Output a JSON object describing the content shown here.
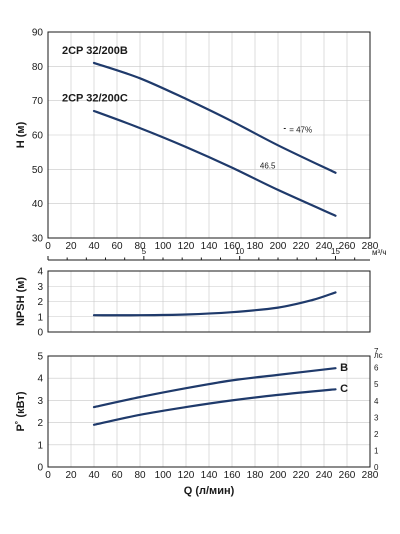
{
  "chart_data": [
    {
      "type": "line",
      "ylabel": "H (м)",
      "x_ticks": [
        "0",
        "20",
        "40",
        "60",
        "80",
        "100",
        "120",
        "140",
        "160",
        "180",
        "200",
        "220",
        "240",
        "260",
        "280"
      ],
      "xlim": [
        0,
        280
      ],
      "ylim": [
        30,
        90
      ],
      "y_ticks": [
        "30",
        "40",
        "50",
        "60",
        "70",
        "80",
        "90"
      ],
      "secondary_x": {
        "label": "м³/ч",
        "ticks": [
          {
            "value": 5,
            "label": "5"
          },
          {
            "value": 10,
            "label": "10"
          },
          {
            "value": 15,
            "label": "15"
          }
        ]
      },
      "series": [
        {
          "name": "2CP 32/200B",
          "x": [
            40,
            80,
            120,
            160,
            200,
            250
          ],
          "values": [
            81,
            76.5,
            70.5,
            64,
            57,
            49
          ]
        },
        {
          "name": "2CP 32/200C",
          "x": [
            40,
            80,
            120,
            160,
            200,
            250
          ],
          "values": [
            67,
            62,
            56.5,
            50.5,
            44,
            36.5
          ]
        }
      ],
      "annotations": [
        {
          "text": "= 47%",
          "x": 208,
          "y": 58.5
        },
        {
          "text": "46.5",
          "x": 186,
          "y": 48.5
        }
      ],
      "grid": true
    },
    {
      "type": "line",
      "ylabel": "NPSH (м)",
      "xlim": [
        0,
        280
      ],
      "ylim": [
        0,
        4
      ],
      "y_ticks": [
        "0",
        "1",
        "2",
        "3",
        "4"
      ],
      "series": [
        {
          "name": "",
          "x": [
            40,
            80,
            120,
            160,
            200,
            230,
            250
          ],
          "values": [
            1.1,
            1.1,
            1.15,
            1.3,
            1.6,
            2.1,
            2.6
          ]
        }
      ],
      "grid": true
    },
    {
      "type": "line",
      "xlabel": "Q (л/мин)",
      "ylabel": "P˚ (кВт)",
      "x_ticks": [
        "0",
        "20",
        "40",
        "60",
        "80",
        "100",
        "120",
        "140",
        "160",
        "180",
        "200",
        "220",
        "240",
        "260",
        "280"
      ],
      "xlim": [
        0,
        280
      ],
      "ylim": [
        0,
        5
      ],
      "y_ticks": [
        "0",
        "1",
        "2",
        "3",
        "4",
        "5"
      ],
      "secondary_y": {
        "label": "лс",
        "ticks": [
          "0",
          "1",
          "2",
          "3",
          "4",
          "5",
          "6",
          "7"
        ]
      },
      "series": [
        {
          "name": "B",
          "x": [
            40,
            80,
            120,
            160,
            200,
            250
          ],
          "values": [
            2.7,
            3.15,
            3.55,
            3.9,
            4.15,
            4.45
          ]
        },
        {
          "name": "C",
          "x": [
            40,
            80,
            120,
            160,
            200,
            250
          ],
          "values": [
            1.9,
            2.35,
            2.7,
            3.0,
            3.25,
            3.5
          ]
        }
      ],
      "grid": true
    }
  ]
}
